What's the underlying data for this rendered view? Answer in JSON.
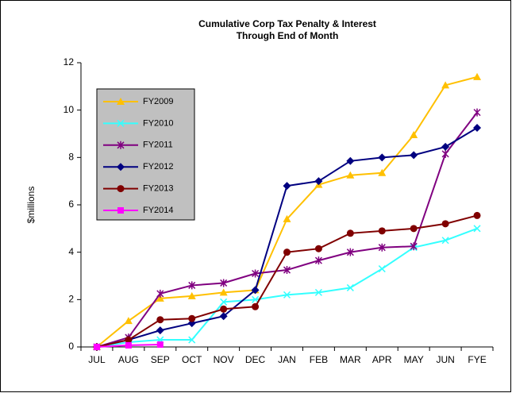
{
  "chart_data": {
    "type": "line",
    "title": "Cumulative Corp Tax Penalty & Interest",
    "subtitle": "Through End of Month",
    "y_label": "$millions",
    "categories": [
      "JUL",
      "AUG",
      "SEP",
      "OCT",
      "NOV",
      "DEC",
      "JAN",
      "FEB",
      "MAR",
      "APR",
      "MAY",
      "JUN",
      "FYE"
    ],
    "ylim": [
      0,
      12
    ],
    "yticks": [
      0,
      2,
      4,
      6,
      8,
      10,
      12
    ],
    "grid": false,
    "legend": "upper left",
    "series": [
      {
        "name": "FY2009",
        "color": "#ffc000",
        "marker": "triangle",
        "values": [
          0,
          1.1,
          2.05,
          2.15,
          2.3,
          2.4,
          5.4,
          6.85,
          7.25,
          7.35,
          8.95,
          11.05,
          11.4
        ]
      },
      {
        "name": "FY2010",
        "color": "#33ffff",
        "marker": "x",
        "values": [
          0,
          0.2,
          0.3,
          0.3,
          1.9,
          2.0,
          2.2,
          2.3,
          2.5,
          3.3,
          4.2,
          4.5,
          5.0
        ]
      },
      {
        "name": "FY2011",
        "color": "#800080",
        "marker": "star",
        "values": [
          0,
          0.4,
          2.25,
          2.6,
          2.7,
          3.1,
          3.25,
          3.65,
          4.0,
          4.2,
          4.25,
          8.15,
          9.9
        ]
      },
      {
        "name": "FY2012",
        "color": "#000080",
        "marker": "diamond",
        "values": [
          0,
          0.3,
          0.7,
          1.0,
          1.3,
          2.4,
          6.8,
          7.0,
          7.85,
          8.0,
          8.1,
          8.45,
          9.25
        ]
      },
      {
        "name": "FY2013",
        "color": "#800000",
        "marker": "circle",
        "values": [
          0,
          0.3,
          1.15,
          1.2,
          1.6,
          1.7,
          4.0,
          4.15,
          4.8,
          4.9,
          5.0,
          5.2,
          5.55
        ]
      },
      {
        "name": "FY2014",
        "color": "#ff00ff",
        "marker": "square",
        "values": [
          0,
          0.07,
          0.1,
          null,
          null,
          null,
          null,
          null,
          null,
          null,
          null,
          null,
          null
        ]
      }
    ]
  }
}
